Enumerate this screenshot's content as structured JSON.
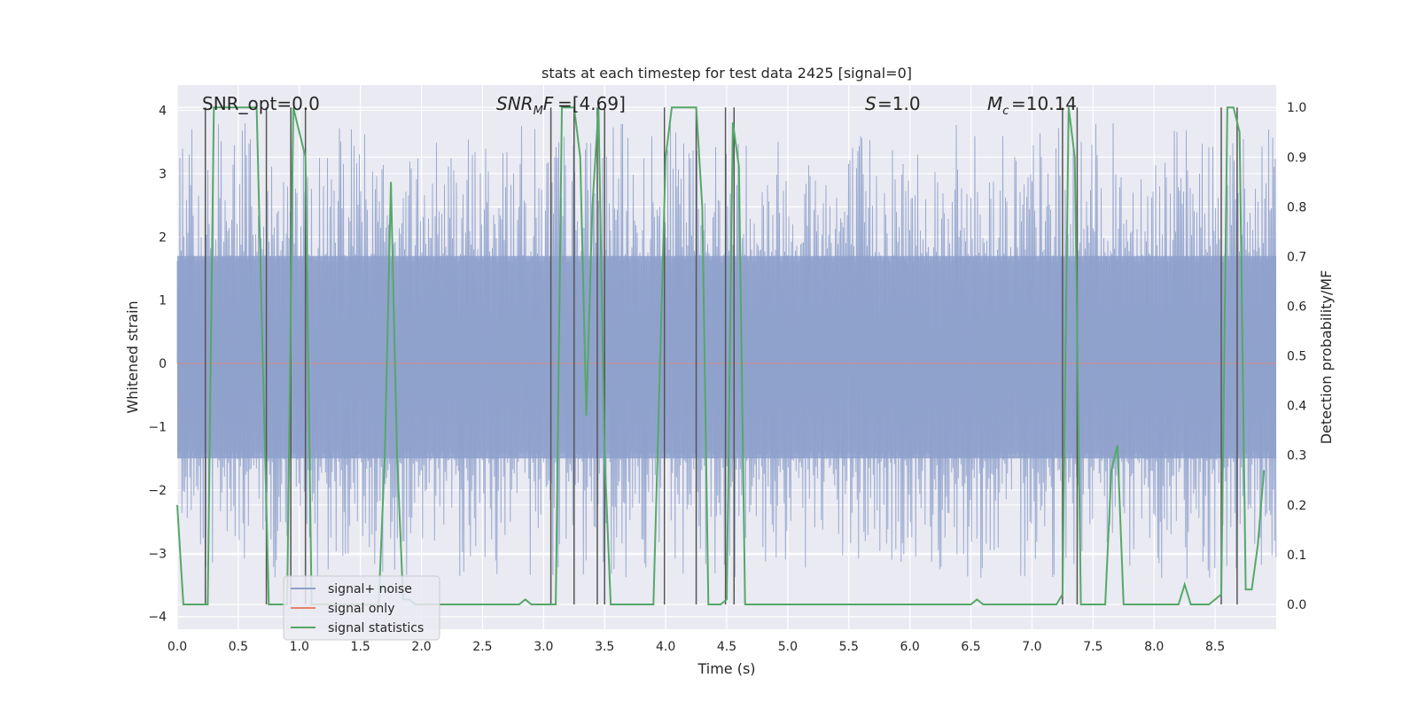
{
  "chart_data": {
    "type": "line",
    "title": "stats at each timestep for test data 2425 [signal=0]",
    "xlabel": "Time (s)",
    "ylabel_left": "Whitened strain",
    "ylabel_right": "Detection probability/MF",
    "xlim": [
      0.0,
      9.0
    ],
    "ylim_left": [
      -4.2,
      4.4
    ],
    "ylim_right": [
      -0.05,
      1.045
    ],
    "grid": true,
    "legend_placement": "lower-left",
    "colors": {
      "background": "#eaeaf2",
      "grid": "#ffffff",
      "noise": "#8da0cb",
      "signal_only": "#e8836b",
      "statistics": "#55a868",
      "vlines": "#555555"
    },
    "x_ticks": [
      "0.0",
      "0.5",
      "1.0",
      "1.5",
      "2.0",
      "2.5",
      "3.0",
      "3.5",
      "4.0",
      "4.5",
      "5.0",
      "5.5",
      "6.0",
      "6.5",
      "7.0",
      "7.5",
      "8.0",
      "8.5"
    ],
    "y_ticks_left": [
      "−4",
      "−3",
      "−2",
      "−1",
      "0",
      "1",
      "2",
      "3",
      "4"
    ],
    "y_ticks_right": [
      "0.0",
      "0.1",
      "0.2",
      "0.3",
      "0.4",
      "0.5",
      "0.6",
      "0.7",
      "0.8",
      "0.9",
      "1.0"
    ],
    "annotations": {
      "snr_opt": "SNR_opt=0.0",
      "snr_mf": "=[4.69]",
      "s_label": "=1.0",
      "mc_label": "=10.14"
    },
    "series": [
      {
        "name": "signal+ noise"
      },
      {
        "name": "signal only"
      },
      {
        "name": "signal statistics",
        "x": [
          0.0,
          0.05,
          0.1,
          0.15,
          0.2,
          0.25,
          0.3,
          0.35,
          0.4,
          0.45,
          0.5,
          0.55,
          0.6,
          0.65,
          0.7,
          0.75,
          0.8,
          0.85,
          0.9,
          0.95,
          1.0,
          1.05,
          1.1,
          1.15,
          1.2,
          1.25,
          1.3,
          1.35,
          1.4,
          1.45,
          1.5,
          1.55,
          1.6,
          1.65,
          1.7,
          1.75,
          1.8,
          1.85,
          1.9,
          1.95,
          2.0,
          2.1,
          2.2,
          2.3,
          2.4,
          2.5,
          2.6,
          2.7,
          2.8,
          2.85,
          2.9,
          3.0,
          3.05,
          3.1,
          3.15,
          3.2,
          3.25,
          3.3,
          3.35,
          3.4,
          3.45,
          3.5,
          3.55,
          3.6,
          3.65,
          3.7,
          3.8,
          3.9,
          4.0,
          4.05,
          4.1,
          4.15,
          4.2,
          4.25,
          4.3,
          4.35,
          4.4,
          4.45,
          4.5,
          4.55,
          4.6,
          4.65,
          4.7,
          4.75,
          4.8,
          5.0,
          5.5,
          6.0,
          6.5,
          6.55,
          6.6,
          6.65,
          6.7,
          6.8,
          7.0,
          7.2,
          7.25,
          7.3,
          7.35,
          7.4,
          7.45,
          7.5,
          7.55,
          7.6,
          7.65,
          7.7,
          7.75,
          7.8,
          8.0,
          8.2,
          8.25,
          8.3,
          8.35,
          8.45,
          8.5,
          8.55,
          8.6,
          8.65,
          8.7,
          8.75,
          8.8,
          8.85,
          8.9
        ],
        "values": [
          0.2,
          0.0,
          0.0,
          0.0,
          0.0,
          0.0,
          1.0,
          1.0,
          1.0,
          1.0,
          1.0,
          1.0,
          1.0,
          1.0,
          0.5,
          0.0,
          0.0,
          0.0,
          0.0,
          1.0,
          0.95,
          0.9,
          0.0,
          0.0,
          0.0,
          0.0,
          0.0,
          0.0,
          0.0,
          0.0,
          0.0,
          0.0,
          0.0,
          0.0,
          0.3,
          0.85,
          0.3,
          0.01,
          0.01,
          0.0,
          0.0,
          0.0,
          0.0,
          0.0,
          0.0,
          0.0,
          0.0,
          0.0,
          0.0,
          0.01,
          0.0,
          0.0,
          0.0,
          0.0,
          1.0,
          1.0,
          1.0,
          0.9,
          0.38,
          0.8,
          1.0,
          0.3,
          0.0,
          0.0,
          0.0,
          0.0,
          0.0,
          0.0,
          0.9,
          1.0,
          1.0,
          1.0,
          1.0,
          1.0,
          0.8,
          0.0,
          0.0,
          0.0,
          0.01,
          0.97,
          0.88,
          0.0,
          0.0,
          0.0,
          0.0,
          0.0,
          0.0,
          0.0,
          0.0,
          0.01,
          0.0,
          0.0,
          0.0,
          0.0,
          0.0,
          0.0,
          0.02,
          1.0,
          0.9,
          0.0,
          0.0,
          0.0,
          0.0,
          0.0,
          0.27,
          0.32,
          0.0,
          0.0,
          0.0,
          0.0,
          0.04,
          0.0,
          0.0,
          0.0,
          0.01,
          0.02,
          1.0,
          1.0,
          0.95,
          0.03,
          0.03,
          0.12,
          0.27
        ]
      }
    ],
    "vertical_lines_x": [
      0.23,
      0.73,
      0.93,
      1.05,
      3.06,
      3.25,
      3.44,
      3.5,
      3.99,
      4.25,
      4.49,
      4.56,
      7.25,
      7.37,
      8.55,
      8.68
    ]
  }
}
